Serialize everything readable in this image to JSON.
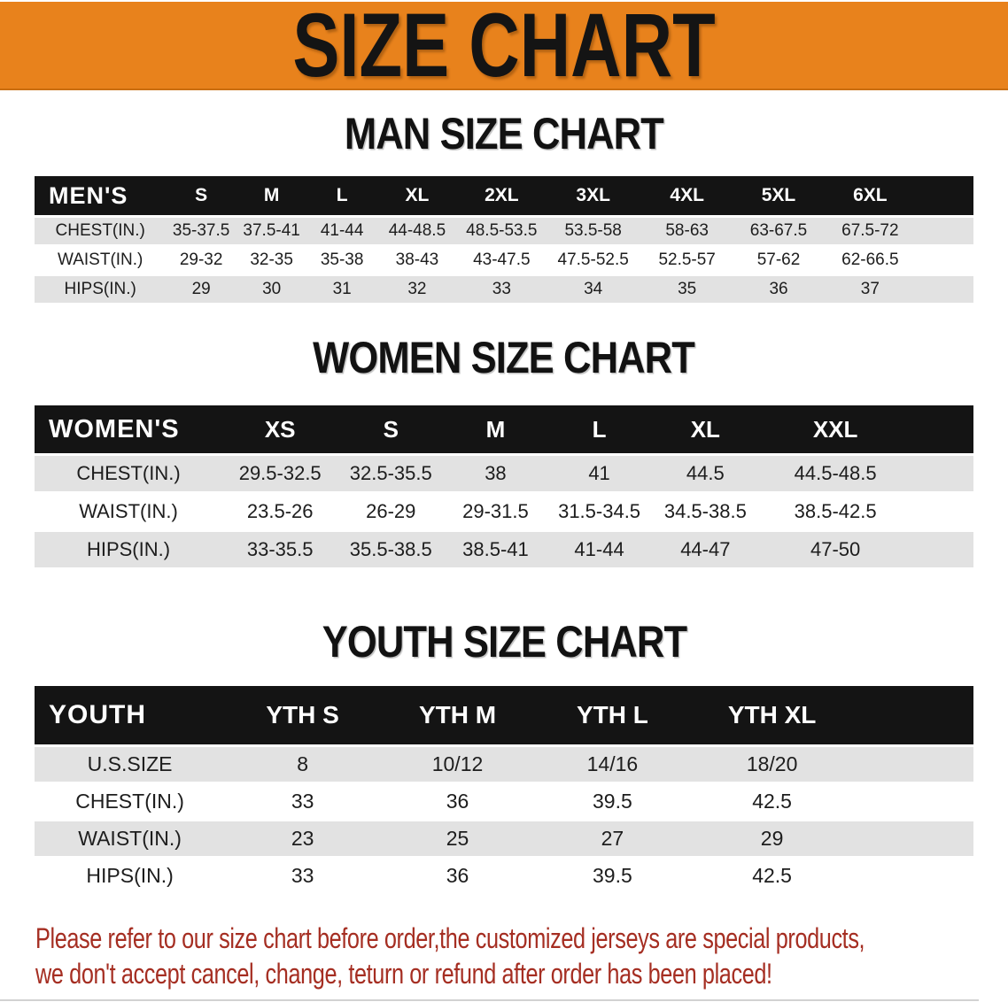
{
  "banner": {
    "title": "SIZE CHART",
    "bg_color": "#e8821c",
    "text_color": "#141414"
  },
  "table_style": {
    "header_bg": "#141414",
    "header_text": "#ffffff",
    "stripe_color": "#e2e2e2"
  },
  "sections": [
    {
      "heading": "MAN SIZE CHART",
      "table": {
        "label": "MEN'S",
        "columns": [
          "S",
          "M",
          "L",
          "XL",
          "2XL",
          "3XL",
          "4XL",
          "5XL",
          "6XL"
        ],
        "rows": [
          {
            "label": "CHEST(IN.)",
            "values": [
              "35-37.5",
              "37.5-41",
              "41-44",
              "44-48.5",
              "48.5-53.5",
              "53.5-58",
              "58-63",
              "63-67.5",
              "67.5-72"
            ]
          },
          {
            "label": "WAIST(IN.)",
            "values": [
              "29-32",
              "32-35",
              "35-38",
              "38-43",
              "43-47.5",
              "47.5-52.5",
              "52.5-57",
              "57-62",
              "62-66.5"
            ]
          },
          {
            "label": "HIPS(IN.)",
            "values": [
              "29",
              "30",
              "31",
              "32",
              "33",
              "34",
              "35",
              "36",
              "37"
            ]
          }
        ]
      }
    },
    {
      "heading": "WOMEN SIZE CHART",
      "table": {
        "label": "WOMEN'S",
        "columns": [
          "XS",
          "S",
          "M",
          "L",
          "XL",
          "XXL"
        ],
        "rows": [
          {
            "label": "CHEST(IN.)",
            "values": [
              "29.5-32.5",
              "32.5-35.5",
              "38",
              "41",
              "44.5",
              "44.5-48.5"
            ]
          },
          {
            "label": "WAIST(IN.)",
            "values": [
              "23.5-26",
              "26-29",
              "29-31.5",
              "31.5-34.5",
              "34.5-38.5",
              "38.5-42.5"
            ]
          },
          {
            "label": "HIPS(IN.)",
            "values": [
              "33-35.5",
              "35.5-38.5",
              "38.5-41",
              "41-44",
              "44-47",
              "47-50"
            ]
          }
        ]
      }
    },
    {
      "heading": "YOUTH SIZE CHART",
      "table": {
        "label": "YOUTH",
        "columns": [
          "YTH S",
          "YTH M",
          "YTH L",
          "YTH XL"
        ],
        "rows": [
          {
            "label": "U.S.SIZE",
            "values": [
              "8",
              "10/12",
              "14/16",
              "18/20"
            ]
          },
          {
            "label": "CHEST(IN.)",
            "values": [
              "33",
              "36",
              "39.5",
              "42.5"
            ]
          },
          {
            "label": "WAIST(IN.)",
            "values": [
              "23",
              "25",
              "27",
              "29"
            ]
          },
          {
            "label": "HIPS(IN.)",
            "values": [
              "33",
              "36",
              "39.5",
              "42.5"
            ]
          }
        ]
      }
    }
  ],
  "disclaimer": {
    "lines": [
      "Please refer to our size chart before order,the customized jerseys are special products,",
      "we don't accept cancel, change, teturn or refund after order has been placed!"
    ],
    "color": "#a52e22"
  }
}
